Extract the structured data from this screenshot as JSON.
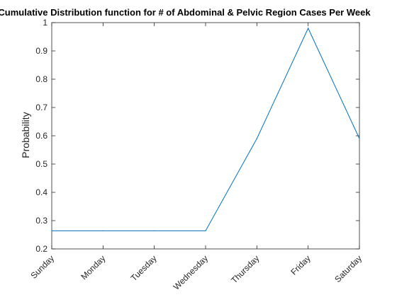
{
  "chart_data": {
    "type": "line",
    "title": "Cumulative Distribution function for # of Abdominal & Pelvic Region Cases Per Week",
    "xlabel": "",
    "ylabel": "Probability",
    "categories": [
      "Sunday",
      "Monday",
      "Tuesday",
      "Wednesday",
      "Thursday",
      "Friday",
      "Saturday"
    ],
    "series": [
      {
        "values": [
          0.264,
          0.264,
          0.264,
          0.264,
          0.59,
          0.98,
          0.59
        ]
      }
    ],
    "ylim": [
      0.2,
      1
    ],
    "yticks": [
      0.2,
      0.3,
      0.4,
      0.5,
      0.6,
      0.7,
      0.8,
      0.9,
      1
    ],
    "ytick_labels": [
      "0.2",
      "0.3",
      "0.4",
      "0.5",
      "0.6",
      "0.7",
      "0.8",
      "0.9",
      "1"
    ],
    "grid": false,
    "legend": "none",
    "line_color": "#0072bd"
  }
}
